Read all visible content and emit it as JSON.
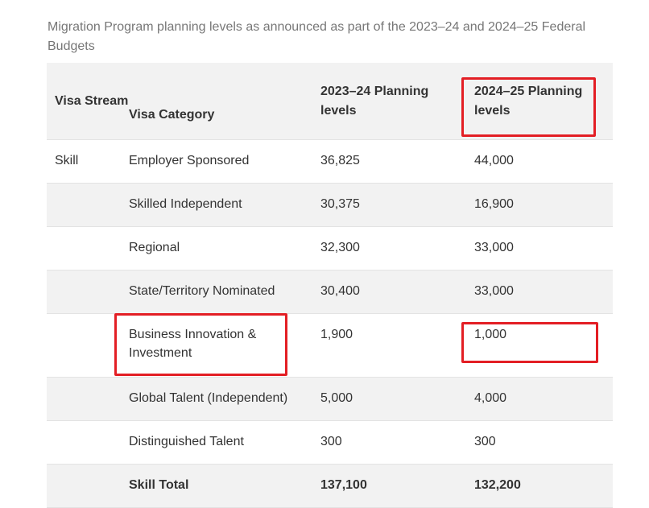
{
  "caption": "Migration Program planning levels as announced as part of the 2023–24 and 2024–25 Federal Budgets",
  "table": {
    "headers": [
      "Visa Stream",
      "Visa Category",
      "2023–24 Planning levels",
      "2024–25 Planning levels"
    ],
    "rows": [
      [
        "Skill",
        "Employer Sponsored",
        "36,825",
        "44,000"
      ],
      [
        "",
        "Skilled Independent",
        "30,375",
        "16,900"
      ],
      [
        "",
        "Regional",
        "32,300",
        "33,000"
      ],
      [
        "",
        "State/Territory Nominated",
        "30,400",
        "33,000"
      ],
      [
        "",
        "Business Innovation & Investment",
        "1,900",
        "1,000"
      ],
      [
        "",
        "Global Talent (Independent)",
        "5,000",
        "4,000"
      ],
      [
        "",
        "Distinguished Talent",
        "300",
        "300"
      ]
    ],
    "total": [
      "",
      "Skill Total",
      "137,100",
      "132,200"
    ]
  },
  "highlight_color": "#e31e24"
}
